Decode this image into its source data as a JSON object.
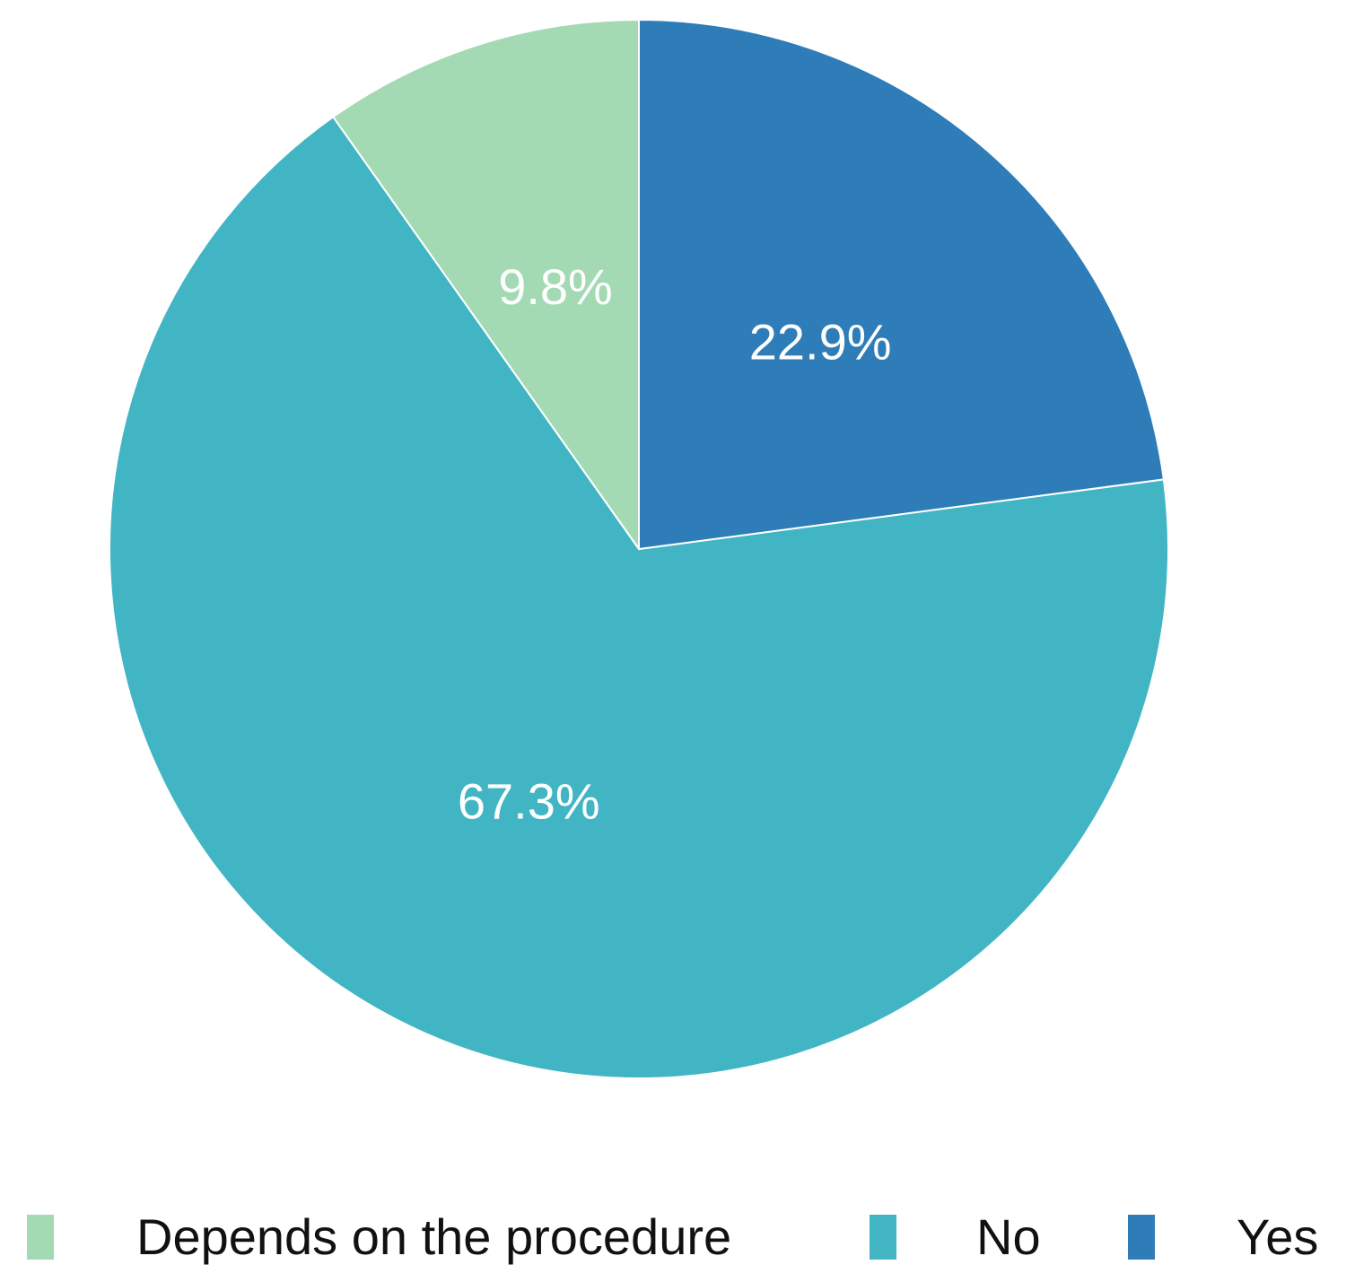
{
  "chart_data": {
    "type": "pie",
    "title": "",
    "categories": [
      "Depends on the procedure",
      "No",
      "Yes"
    ],
    "values": [
      9.8,
      67.3,
      22.9
    ],
    "value_labels": [
      "9.8%",
      "67.3%",
      "22.9%"
    ],
    "colors": [
      "#a3dab4",
      "#42b5c4",
      "#2e7db8"
    ],
    "legend_position": "bottom"
  },
  "legend": {
    "items": [
      {
        "label": "Depends on the procedure",
        "color": "#a3dab4"
      },
      {
        "label": "No",
        "color": "#42b5c4"
      },
      {
        "label": "Yes",
        "color": "#2e7db8"
      }
    ]
  }
}
